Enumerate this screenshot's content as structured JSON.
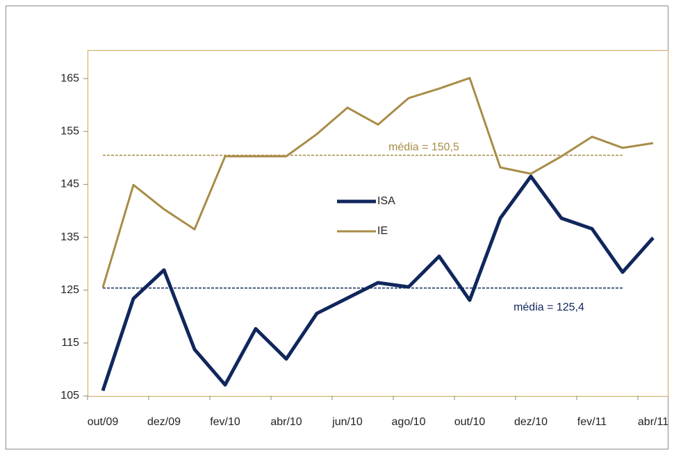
{
  "chart_data": {
    "type": "line",
    "categories": [
      "out/09",
      null,
      "dez/09",
      null,
      "fev/10",
      null,
      "abr/10",
      null,
      "jun/10",
      null,
      "ago/10",
      null,
      "out/10",
      null,
      "dez/10",
      null,
      "fev/11",
      null,
      "abr/11"
    ],
    "series": [
      {
        "name": "ISA",
        "color": "#10275c",
        "values": [
          106.0,
          123.4,
          128.8,
          113.8,
          107.1,
          117.7,
          112.0,
          120.6,
          123.5,
          126.4,
          125.6,
          131.4,
          123.1,
          138.6,
          146.5,
          138.6,
          136.6,
          128.4,
          134.9
        ]
      },
      {
        "name": "IE",
        "color": "#a88c47",
        "values": [
          125.5,
          144.9,
          140.3,
          136.5,
          150.3,
          150.3,
          150.3,
          154.5,
          159.5,
          156.3,
          161.3,
          163.1,
          165.1,
          148.2,
          147.0,
          150.3,
          154.0,
          151.9,
          152.8
        ]
      }
    ],
    "reference_lines": [
      {
        "value": 150.5,
        "label": "média = 150,5",
        "color": "#a88c47"
      },
      {
        "value": 125.4,
        "label": "média = 125,4",
        "color": "#10275c"
      }
    ],
    "ylim": [
      105,
      170
    ],
    "yticks": [
      105,
      115,
      125,
      135,
      145,
      155,
      165
    ],
    "grid": false
  }
}
